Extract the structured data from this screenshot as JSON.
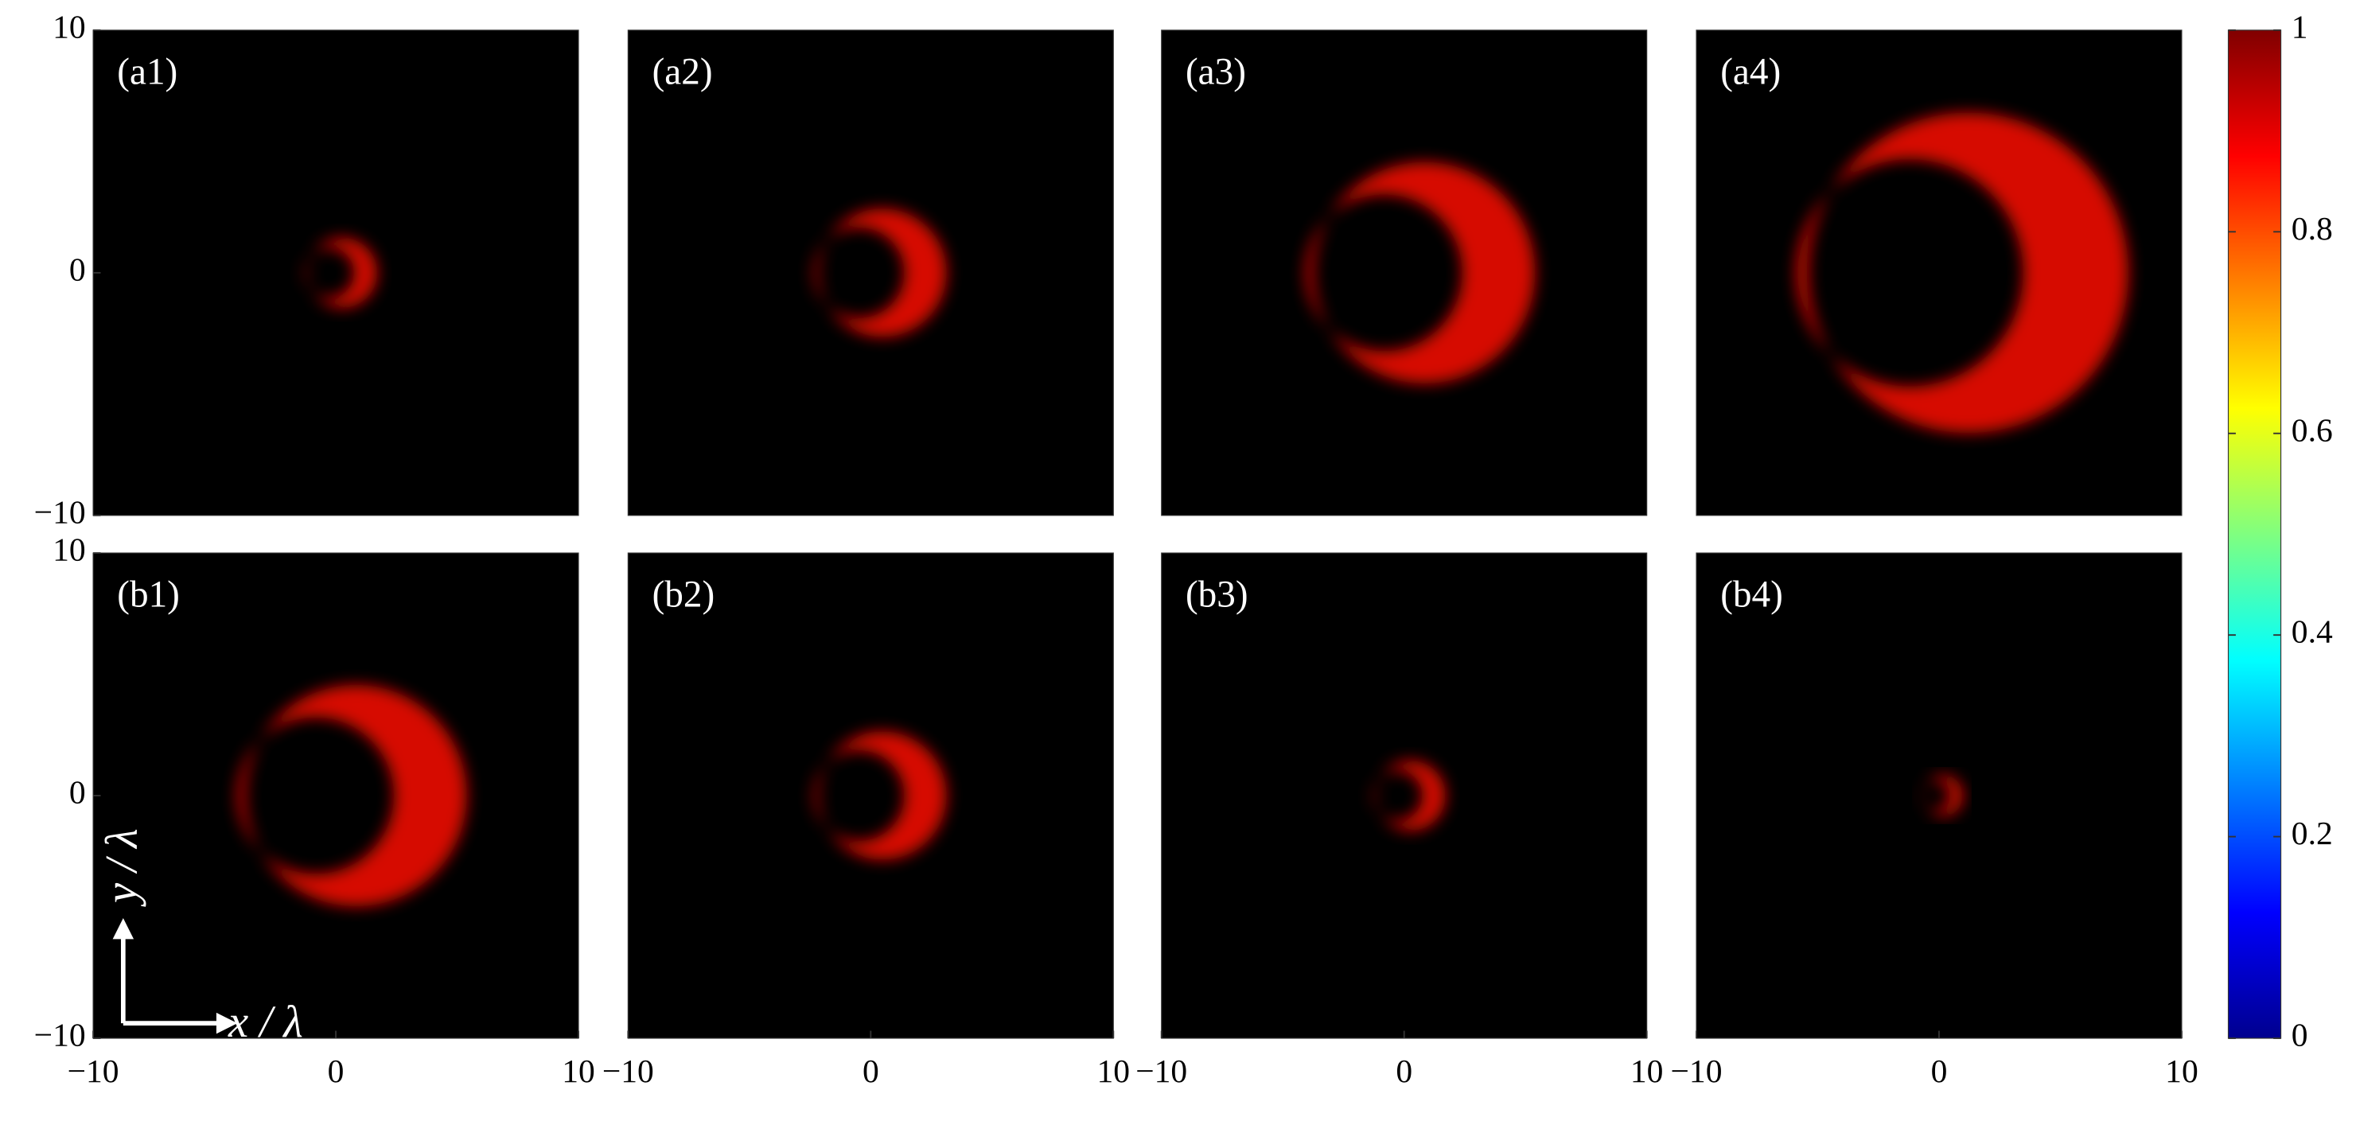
{
  "chart_data": [
    {
      "type": "heatmap",
      "label": "(a1)",
      "ylim": [
        -10,
        10
      ],
      "yticks": [
        {
          "value": -10,
          "label": "−10"
        },
        0,
        10
      ]
    },
    {
      "type": "heatmap",
      "label": "(a2)"
    },
    {
      "type": "heatmap",
      "label": "(a3)"
    },
    {
      "type": "heatmap",
      "label": "(a4)"
    },
    {
      "type": "heatmap",
      "label": "(b1)",
      "xlim": [
        -10,
        10
      ],
      "ylim": [
        -10,
        10
      ],
      "xticks": [
        {
          "value": -10,
          "label": "−10"
        },
        0,
        10
      ],
      "yticks": [
        {
          "value": -10,
          "label": "−10"
        },
        0,
        10
      ],
      "xlabel": "x / λ",
      "ylabel": "y / λ"
    },
    {
      "type": "heatmap",
      "label": "(b2)",
      "xlim": [
        -10,
        10
      ],
      "xticks": [
        {
          "value": -10,
          "label": "−10"
        },
        0,
        10
      ]
    },
    {
      "type": "heatmap",
      "label": "(b3)",
      "xlim": [
        -10,
        10
      ],
      "xticks": [
        {
          "value": -10,
          "label": "−10"
        },
        0,
        10
      ]
    },
    {
      "type": "heatmap",
      "label": "(b4)",
      "xlim": [
        -10,
        10
      ],
      "xticks": [
        {
          "value": -10,
          "label": "−10"
        },
        0,
        10
      ]
    },
    {
      "type": "colorbar",
      "ylim": [
        0,
        1
      ],
      "yticks": [
        0,
        0.2,
        0.4,
        0.6,
        0.8,
        1
      ]
    }
  ]
}
